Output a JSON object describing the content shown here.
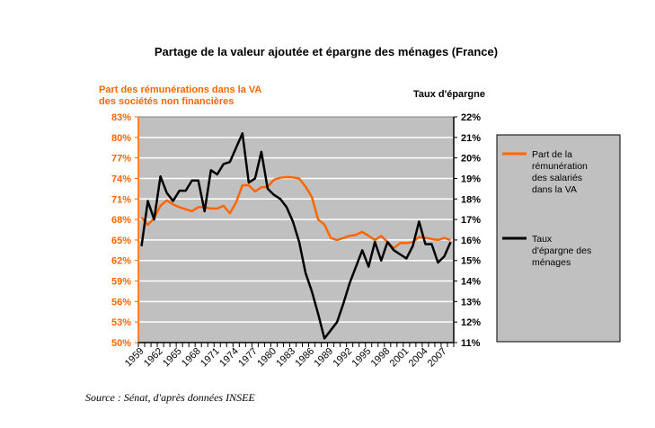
{
  "chart_data": {
    "type": "line",
    "title": "Partage de la valeur ajoutée et épargne des ménages (France)",
    "y_left_label": [
      "Part  des rémunérations dans la VA",
      "des sociétés non financières"
    ],
    "y_right_label": "Taux d'épargne",
    "x": [
      1959,
      1960,
      1961,
      1962,
      1963,
      1964,
      1965,
      1966,
      1967,
      1968,
      1969,
      1970,
      1971,
      1972,
      1973,
      1974,
      1975,
      1976,
      1977,
      1978,
      1979,
      1980,
      1981,
      1982,
      1983,
      1984,
      1985,
      1986,
      1987,
      1988,
      1989,
      1990,
      1991,
      1992,
      1993,
      1994,
      1995,
      1996,
      1997,
      1998,
      1999,
      2000,
      2001,
      2002,
      2003,
      2004,
      2005,
      2006,
      2007,
      2008
    ],
    "x_tick_labels": [
      "1959",
      "1962",
      "1965",
      "1968",
      "1971",
      "1974",
      "1977",
      "1980",
      "1983",
      "1986",
      "1989",
      "1992",
      "1995",
      "1998",
      "2001",
      "2004",
      "2007"
    ],
    "y_left_ticks": [
      "83%",
      "80%",
      "77%",
      "74%",
      "71%",
      "68%",
      "65%",
      "62%",
      "59%",
      "56%",
      "53%",
      "50%"
    ],
    "y_right_ticks": [
      "22%",
      "21%",
      "20%",
      "19%",
      "18%",
      "17%",
      "16%",
      "15%",
      "14%",
      "13%",
      "12%",
      "11%"
    ],
    "ylim_left": [
      50,
      83
    ],
    "ylim_right": [
      11,
      22
    ],
    "grid": true,
    "legend_position": "right",
    "series": [
      {
        "name": "Part de la rémunération des salariés dans la VA",
        "legend_lines": [
          "Part de la",
          "rémunération",
          "des salariés",
          "dans la VA"
        ],
        "axis": "left",
        "color": "#ff6600",
        "values": [
          68.3,
          67.2,
          68.2,
          70.0,
          70.8,
          70.2,
          69.8,
          69.5,
          69.2,
          69.8,
          69.8,
          69.6,
          69.6,
          70.0,
          68.9,
          70.5,
          73.0,
          73.0,
          72.1,
          72.7,
          72.8,
          73.8,
          74.1,
          74.2,
          74.15,
          74.0,
          72.8,
          71.3,
          68.0,
          67.25,
          65.3,
          65.0,
          65.3,
          65.6,
          65.75,
          66.2,
          65.6,
          65.0,
          65.6,
          64.7,
          63.8,
          64.55,
          64.55,
          64.7,
          65.45,
          65.3,
          65.15,
          65.0,
          65.3,
          65.0
        ]
      },
      {
        "name": "Taux d'épargne des ménages",
        "legend_lines": [
          "Taux",
          "d'épargne des",
          "ménages"
        ],
        "axis": "right",
        "color": "#000000",
        "values": [
          15.7,
          17.9,
          17.0,
          19.1,
          18.3,
          17.9,
          18.4,
          18.4,
          18.9,
          18.9,
          17.4,
          19.4,
          19.2,
          19.7,
          19.8,
          20.5,
          21.2,
          18.8,
          19.0,
          20.3,
          18.5,
          18.2,
          18.0,
          17.6,
          16.9,
          15.9,
          14.4,
          13.5,
          12.4,
          11.2,
          11.6,
          12.0,
          12.9,
          13.9,
          14.7,
          15.5,
          14.7,
          15.9,
          15.0,
          15.9,
          15.5,
          15.3,
          15.1,
          15.7,
          16.9,
          15.8,
          15.8,
          14.9,
          15.2,
          15.9
        ]
      }
    ],
    "colors": {
      "plot_bg": "#c0c0c0",
      "grid": "#ffffff",
      "left_axis": "#ff6600"
    }
  },
  "source": "Source : Sénat,  d'après données INSEE"
}
